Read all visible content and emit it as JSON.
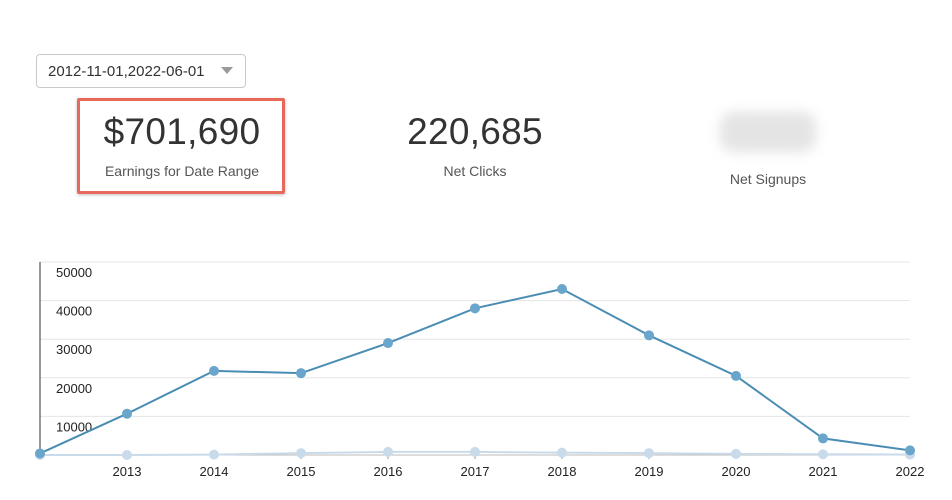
{
  "date_filter": {
    "value": "2012-11-01,2022-06-01",
    "icon": "caret-down-icon"
  },
  "stats": {
    "earnings": {
      "value": "$701,690",
      "label": "Earnings for Date Range"
    },
    "clicks": {
      "value": "220,685",
      "label": "Net Clicks"
    },
    "signups": {
      "value": "",
      "label": "Net Signups",
      "value_obscured": true
    }
  },
  "colors": {
    "highlight_border": "#e8685a",
    "series_primary": "#4a8db3",
    "series_secondary": "#c9dbeb",
    "grid": "#e5e5e5"
  },
  "chart_data": {
    "type": "line",
    "x": [
      "2012",
      "2013",
      "2014",
      "2015",
      "2016",
      "2017",
      "2018",
      "2019",
      "2020",
      "2021",
      "2022"
    ],
    "x_tick_labels": [
      "2013",
      "2014",
      "2015",
      "2016",
      "2017",
      "2018",
      "2019",
      "2020",
      "2021",
      "2022"
    ],
    "y_ticks": [
      10000,
      20000,
      30000,
      40000,
      50000
    ],
    "ylim": [
      0,
      50000
    ],
    "grid": true,
    "legend": false,
    "series": [
      {
        "values": [
          400,
          10700,
          21800,
          21200,
          29000,
          38000,
          43000,
          31000,
          20500,
          4300,
          1200
        ]
      },
      {
        "values": [
          0,
          0,
          100,
          500,
          800,
          800,
          600,
          500,
          300,
          200,
          100
        ]
      }
    ]
  }
}
